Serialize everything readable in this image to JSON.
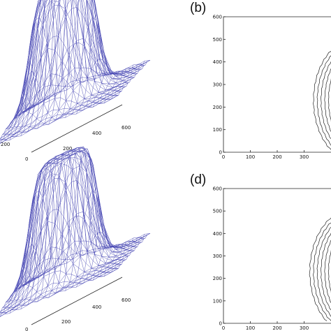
{
  "panels": [
    {
      "id": "a",
      "label": "",
      "type": "3d-mesh",
      "tick_labels_x": [
        "0",
        "200",
        "400",
        "600"
      ],
      "tick_labels_y": [
        "0",
        "200"
      ],
      "mesh_color": "#4a4ab4"
    },
    {
      "id": "b",
      "label": "(b)",
      "type": "contour",
      "x_ticks": [
        "0",
        "100",
        "200",
        "300"
      ],
      "y_ticks": [
        "0",
        "100",
        "200",
        "300",
        "400",
        "500",
        "600"
      ],
      "xlim": [
        0,
        400
      ],
      "ylim": [
        0,
        600
      ],
      "contour_count": 6
    },
    {
      "id": "c",
      "label": "",
      "type": "3d-mesh",
      "tick_labels_x": [
        "0",
        "200",
        "400",
        "600"
      ],
      "tick_labels_y": [
        "0",
        "200"
      ],
      "mesh_color": "#4a4ab4"
    },
    {
      "id": "d",
      "label": "(d)",
      "type": "contour",
      "x_ticks": [
        "0",
        "100",
        "200",
        "300"
      ],
      "y_ticks": [
        "0",
        "100",
        "200",
        "300",
        "400",
        "500",
        "600"
      ],
      "xlim": [
        0,
        400
      ],
      "ylim": [
        0,
        600
      ],
      "contour_count": 7
    }
  ]
}
